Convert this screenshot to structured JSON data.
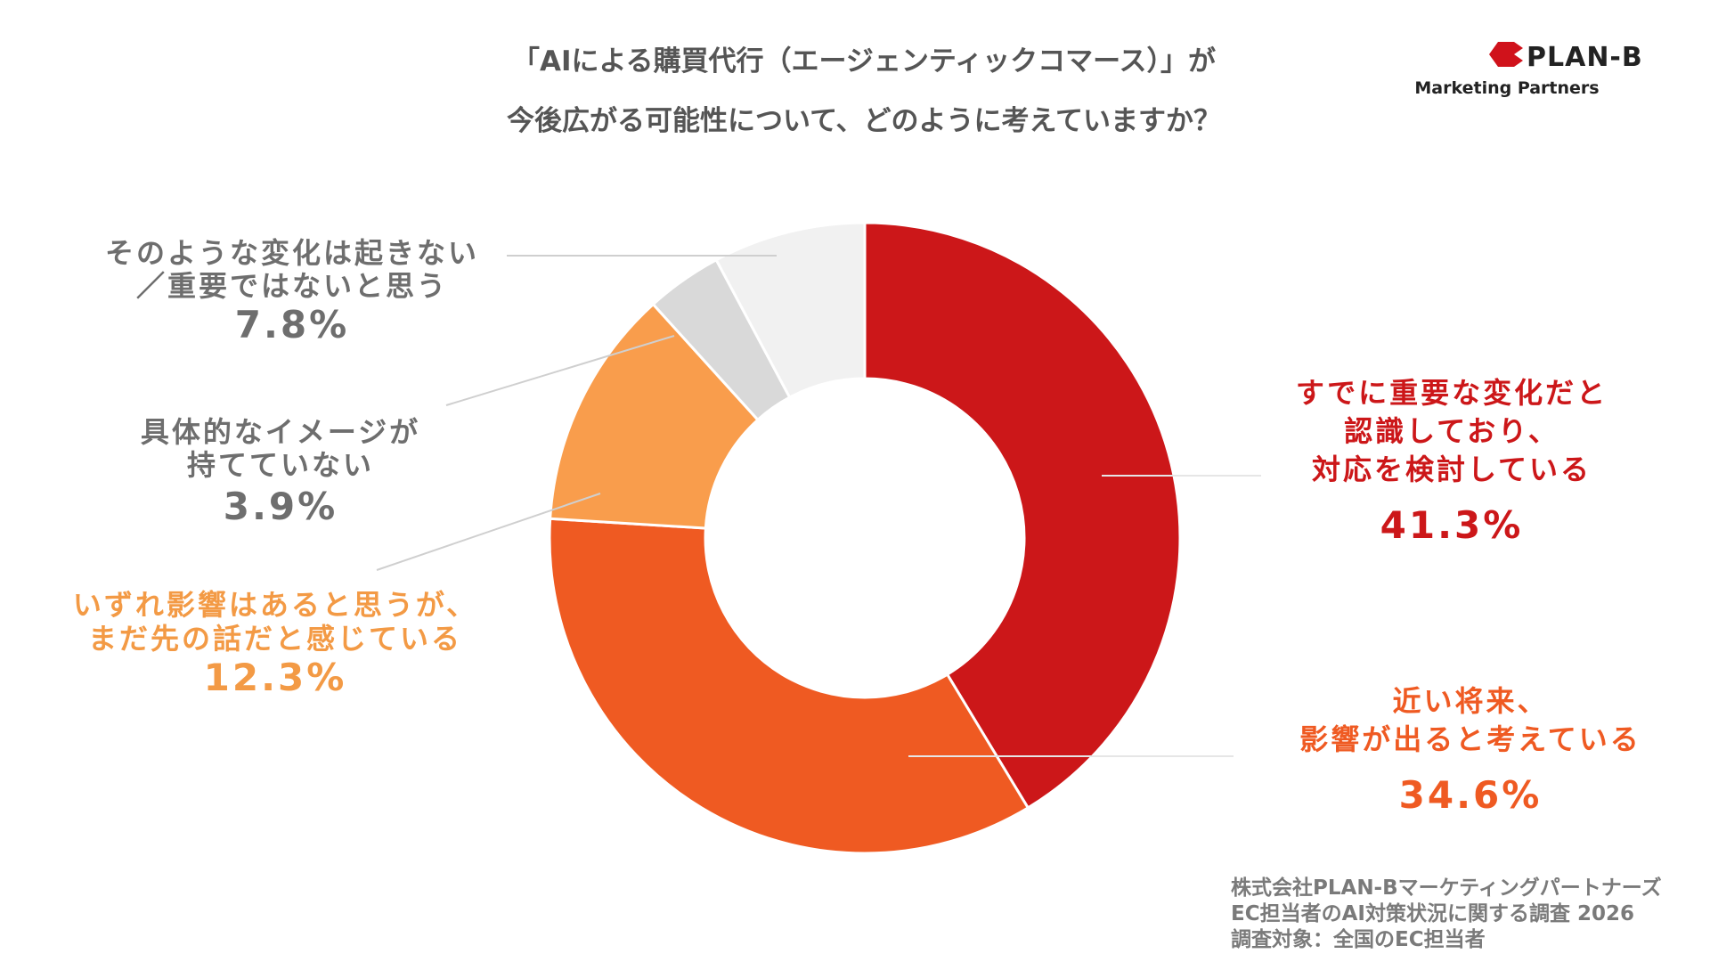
{
  "title": [
    "「AIによる購買代行（エージェンティックコマース）」が",
    "今後広がる可能性について、どのように考えていますか？"
  ],
  "logo": {
    "name": "PLAN-B",
    "subtitle": "Marketing Partners",
    "color": "#d0121b"
  },
  "footer": [
    "株式会社PLAN-Bマーケティングパートナーズ",
    "EC担当者のAI対策状況に関する調査 2026",
    "調査対象：全国のEC担当者"
  ],
  "chart_data": {
    "type": "pie",
    "donut": true,
    "direction": "clockwise from top",
    "slices": [
      {
        "label": [
          "すでに重要な変化だと",
          "認識しており、",
          "対応を検討している"
        ],
        "value": 41.3,
        "display": "41.3%",
        "color": "#cc1719",
        "text_color": "#cc1719"
      },
      {
        "label": [
          "近い将来、",
          "影響が出ると考えている"
        ],
        "value": 34.6,
        "display": "34.6%",
        "color": "#ef5a22",
        "text_color": "#ef5a22"
      },
      {
        "label": [
          "いずれ影響はあると思うが、",
          "まだ先の話だと感じている"
        ],
        "value": 12.3,
        "display": "12.3%",
        "color": "#f99d4c",
        "text_color": "#f39a45"
      },
      {
        "label": [
          "具体的なイメージが",
          "持てていない"
        ],
        "value": 3.9,
        "display": "3.9%",
        "color": "#d9d9d9",
        "text_color": "#6e6e6e"
      },
      {
        "label": [
          "そのような変化は起きない",
          "／重要ではないと思う"
        ],
        "value": 7.8,
        "display": "7.8%",
        "color": "#f1f1f1",
        "text_color": "#6e6e6e"
      }
    ]
  }
}
